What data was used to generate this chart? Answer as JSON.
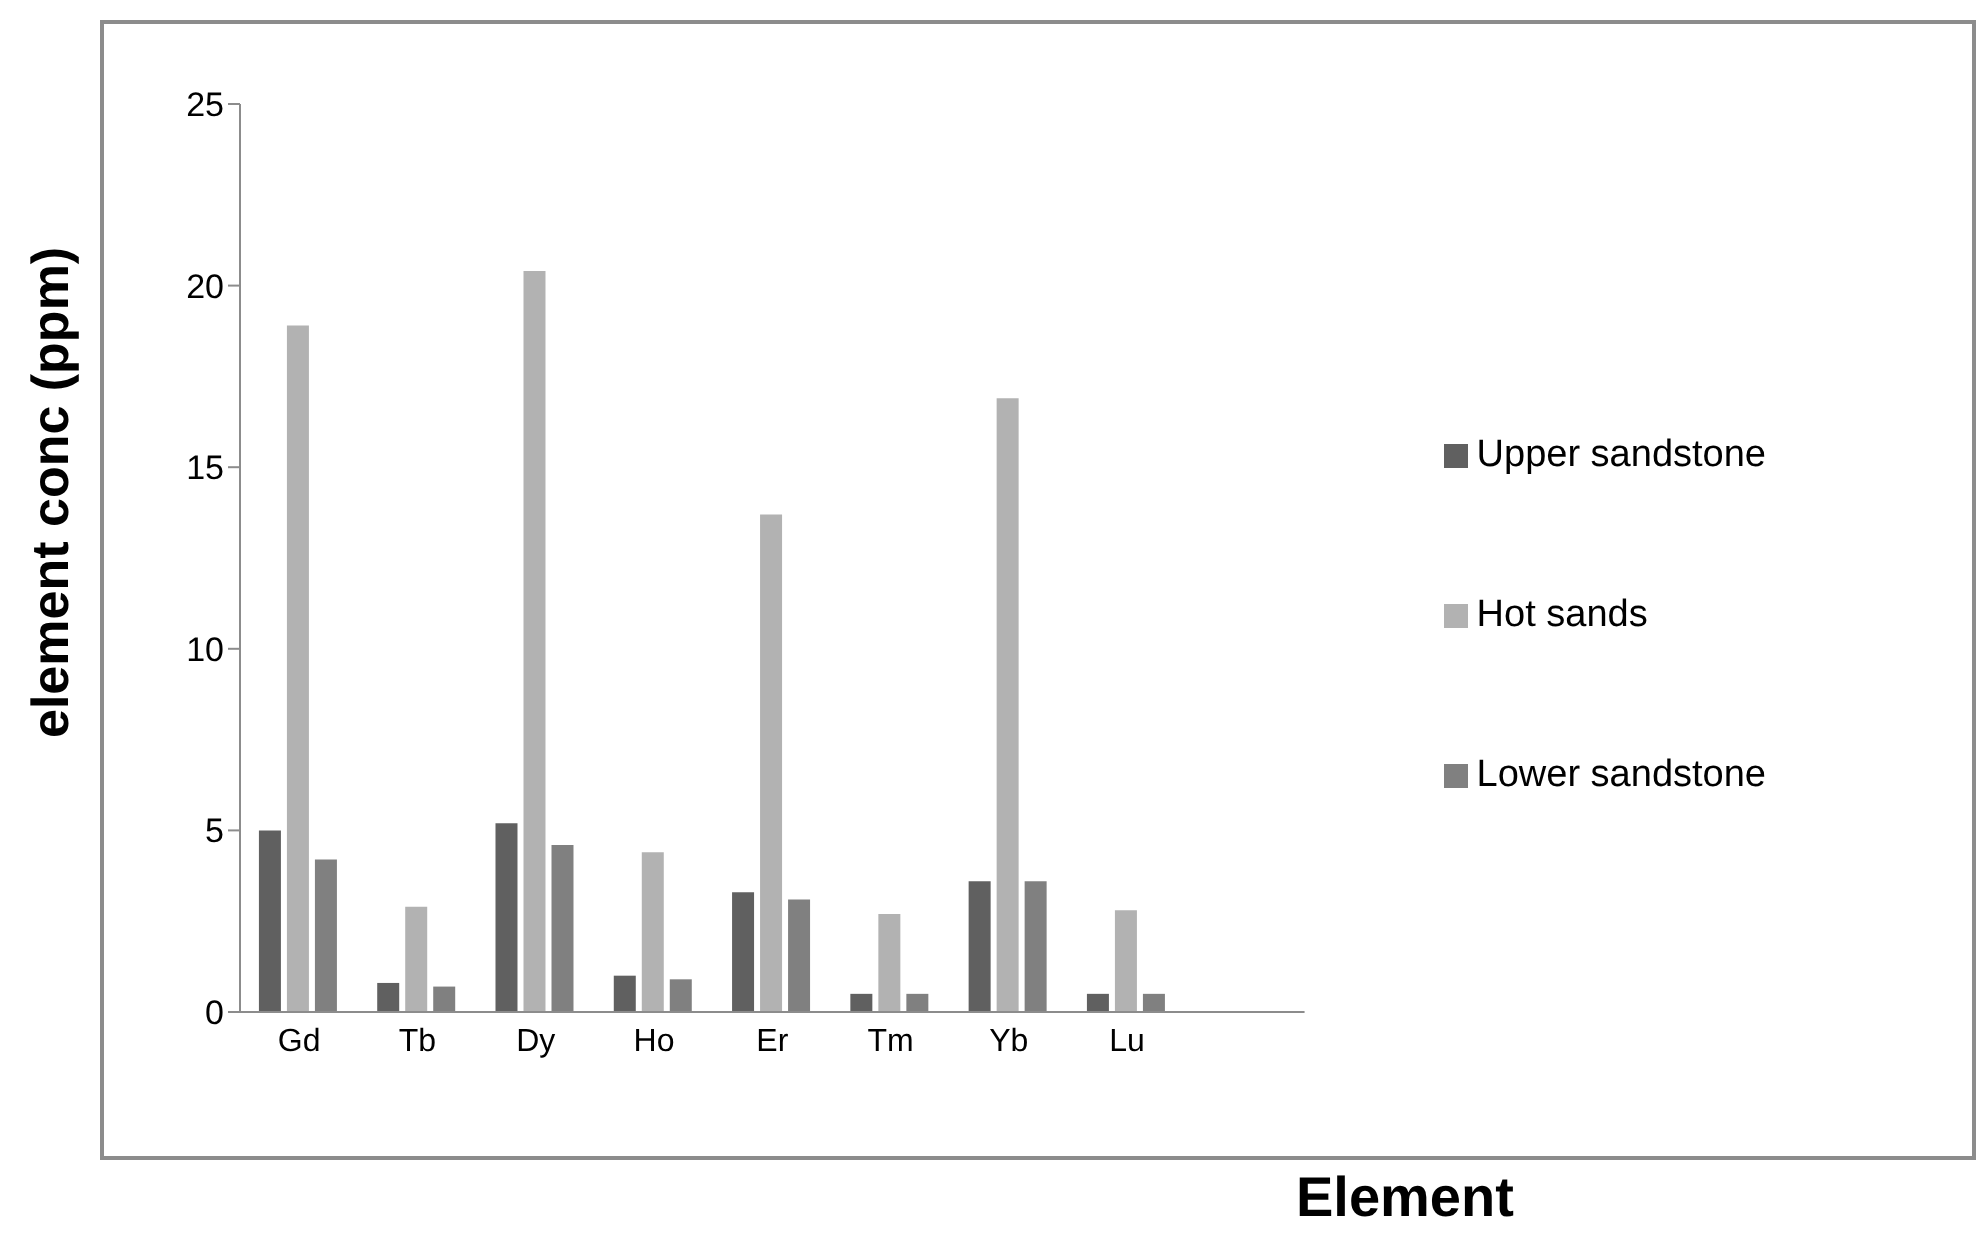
{
  "chart_data": {
    "type": "bar",
    "xlabel": "Element",
    "ylabel": "element conc (ppm)",
    "categories": [
      "Gd",
      "Tb",
      "Dy",
      "Ho",
      "Er",
      "Tm",
      "Yb",
      "Lu",
      null
    ],
    "series": [
      {
        "name": "Upper sandstone",
        "color": "#606060",
        "values": [
          5.0,
          0.8,
          5.2,
          1.0,
          3.3,
          0.5,
          3.6,
          0.5,
          null
        ]
      },
      {
        "name": "Hot sands",
        "color": "#b2b2b2",
        "values": [
          18.9,
          2.9,
          20.4,
          4.4,
          13.7,
          2.7,
          16.9,
          2.8,
          null
        ]
      },
      {
        "name": "Lower sandstone",
        "color": "#808080",
        "values": [
          4.2,
          0.7,
          4.6,
          0.9,
          3.1,
          0.5,
          3.6,
          0.5,
          null
        ]
      }
    ],
    "ylim": [
      0,
      25
    ],
    "yticks": [
      0,
      5,
      10,
      15,
      20,
      25
    ],
    "grid": false,
    "legend": "right"
  }
}
